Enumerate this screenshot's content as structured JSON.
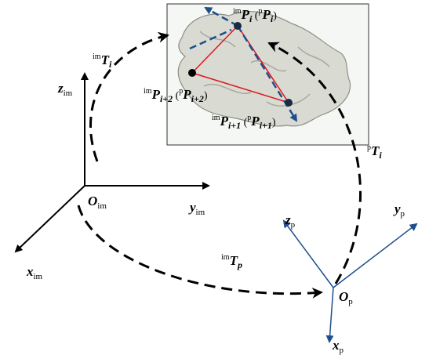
{
  "image_frame": {
    "origin": [
      {
        "text": "O",
        "style": "main"
      },
      {
        "text": "im",
        "style": "sub"
      }
    ],
    "x": [
      {
        "text": "x",
        "style": "main"
      },
      {
        "text": "im",
        "style": "sub"
      }
    ],
    "y": [
      {
        "text": "y",
        "style": "main"
      },
      {
        "text": "im",
        "style": "sub"
      }
    ],
    "z": [
      {
        "text": "z",
        "style": "main"
      },
      {
        "text": "im",
        "style": "sub"
      }
    ]
  },
  "patient_frame": {
    "origin": [
      {
        "text": "O",
        "style": "main"
      },
      {
        "text": "p",
        "style": "sub"
      }
    ],
    "x": [
      {
        "text": "x",
        "style": "main"
      },
      {
        "text": "p",
        "style": "sub"
      }
    ],
    "y": [
      {
        "text": "y",
        "style": "main"
      },
      {
        "text": "p",
        "style": "sub"
      }
    ],
    "z": [
      {
        "text": "z",
        "style": "main"
      },
      {
        "text": "p",
        "style": "sub"
      }
    ]
  },
  "transforms": {
    "image_to_point": [
      {
        "text": "im",
        "style": "sup"
      },
      {
        "text": "T",
        "style": "main"
      },
      {
        "text": "i",
        "style": "index"
      }
    ],
    "point_to_patient": [
      {
        "text": "p",
        "style": "sup"
      },
      {
        "text": "T",
        "style": "main"
      },
      {
        "text": "i",
        "style": "index"
      }
    ],
    "image_to_patient": [
      {
        "text": "im",
        "style": "sup"
      },
      {
        "text": "T",
        "style": "main"
      },
      {
        "text": "p",
        "style": "index"
      }
    ]
  },
  "points": {
    "p_i": [
      {
        "text": "im",
        "style": "sup"
      },
      {
        "text": "P",
        "style": "main"
      },
      {
        "text": "i",
        "style": "index"
      },
      {
        "text": " (",
        "style": "text"
      },
      {
        "text": "p",
        "style": "sup"
      },
      {
        "text": "P",
        "style": "main"
      },
      {
        "text": "i",
        "style": "index"
      },
      {
        "text": ")",
        "style": "text"
      }
    ],
    "p_i2": [
      {
        "text": "im",
        "style": "sup"
      },
      {
        "text": "P",
        "style": "main"
      },
      {
        "text": "i+2",
        "style": "index"
      },
      {
        "text": " (",
        "style": "text"
      },
      {
        "text": "p",
        "style": "sup"
      },
      {
        "text": "P",
        "style": "main"
      },
      {
        "text": "i+2",
        "style": "index"
      },
      {
        "text": ")",
        "style": "text"
      }
    ],
    "p_i1": [
      {
        "text": "im",
        "style": "sup"
      },
      {
        "text": "P",
        "style": "main"
      },
      {
        "text": "i+1",
        "style": "index"
      },
      {
        "text": " (",
        "style": "text"
      },
      {
        "text": "p",
        "style": "sup"
      },
      {
        "text": "P",
        "style": "main"
      },
      {
        "text": "i+1",
        "style": "index"
      },
      {
        "text": ")",
        "style": "text"
      }
    ]
  }
}
